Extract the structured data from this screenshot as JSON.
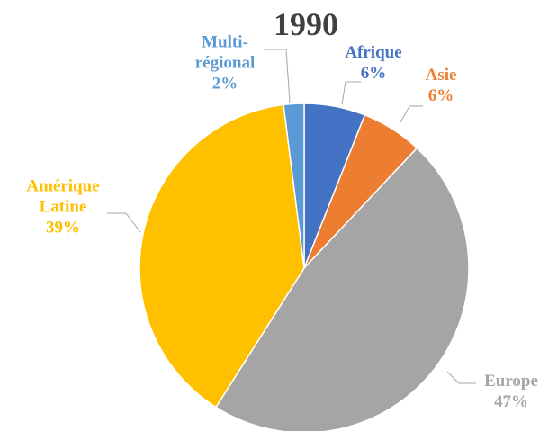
{
  "chart_data": {
    "type": "pie",
    "title": "1990",
    "categories": [
      "Afrique",
      "Asie",
      "Europe",
      "Amérique Latine",
      "Multi-régional"
    ],
    "values": [
      6,
      6,
      47,
      39,
      2
    ],
    "value_labels": [
      "6%",
      "6%",
      "47%",
      "39%",
      "2%"
    ],
    "colors": [
      "#4472c4",
      "#ed7d31",
      "#a5a5a5",
      "#ffc000",
      "#5b9bd5"
    ]
  }
}
